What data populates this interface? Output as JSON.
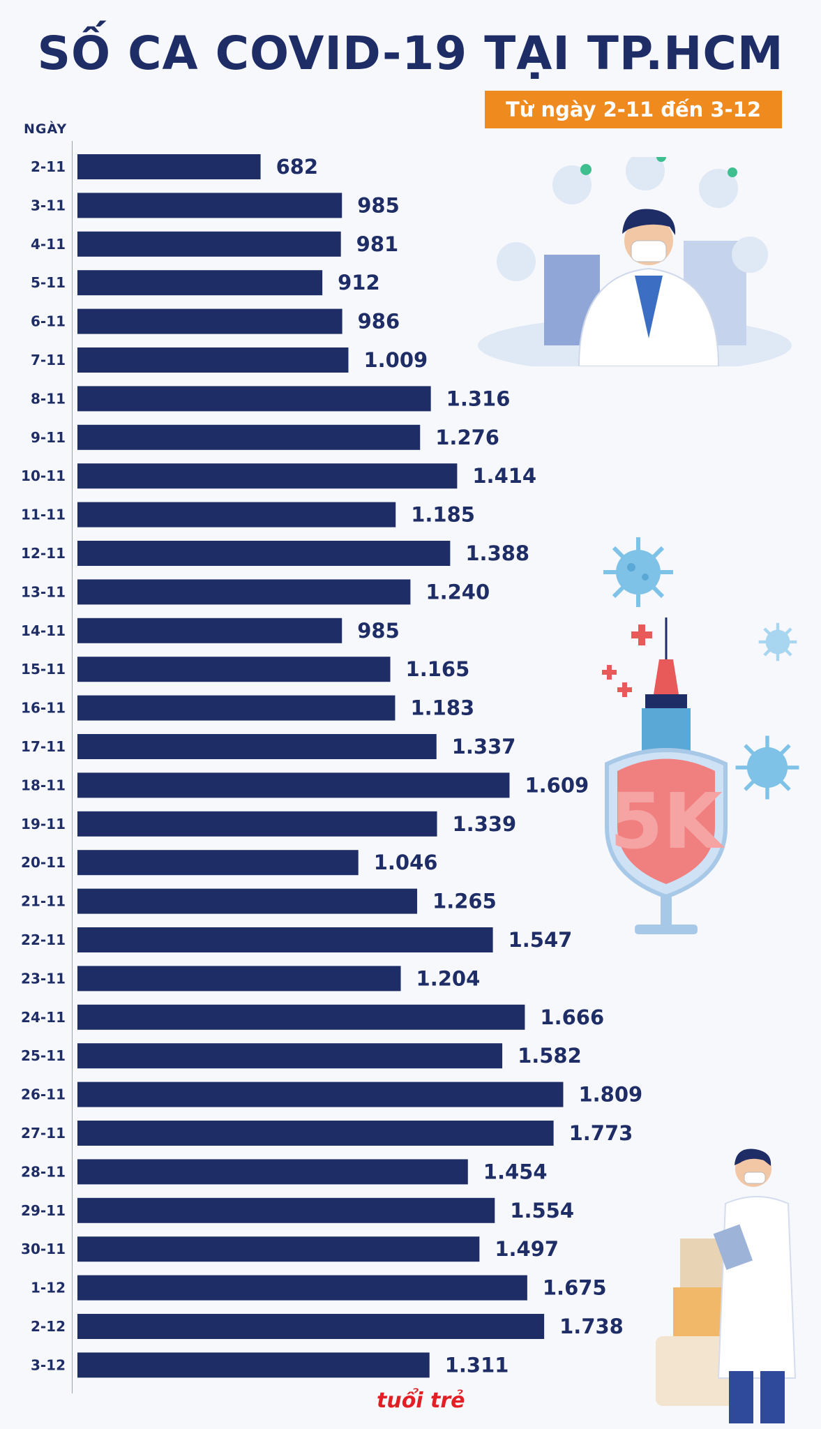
{
  "title": "SỐ CA COVID-19 TẠI TP.HCM",
  "subtitle": "Từ ngày 2-11 đến 3-12",
  "logo_text": "tuổi trẻ",
  "chart_data": {
    "type": "bar",
    "orientation": "horizontal",
    "ylabel": "NGÀY",
    "categories": [
      "2-11",
      "3-11",
      "4-11",
      "5-11",
      "6-11",
      "7-11",
      "8-11",
      "9-11",
      "10-11",
      "11-11",
      "12-11",
      "13-11",
      "14-11",
      "15-11",
      "16-11",
      "17-11",
      "18-11",
      "19-11",
      "20-11",
      "21-11",
      "22-11",
      "23-11",
      "24-11",
      "25-11",
      "26-11",
      "27-11",
      "28-11",
      "29-11",
      "30-11",
      "1-12",
      "2-12",
      "3-12"
    ],
    "values": [
      682,
      985,
      981,
      912,
      986,
      1009,
      1316,
      1276,
      1414,
      1185,
      1388,
      1240,
      985,
      1165,
      1183,
      1337,
      1609,
      1339,
      1046,
      1265,
      1547,
      1204,
      1666,
      1582,
      1809,
      1773,
      1454,
      1554,
      1497,
      1675,
      1738,
      1311
    ],
    "value_labels": [
      "682",
      "985",
      "981",
      "912",
      "986",
      "1.009",
      "1.316",
      "1.276",
      "1.414",
      "1.185",
      "1.388",
      "1.240",
      "985",
      "1.165",
      "1.183",
      "1.337",
      "1.609",
      "1.339",
      "1.046",
      "1.265",
      "1.547",
      "1.204",
      "1.666",
      "1.582",
      "1.809",
      "1.773",
      "1.454",
      "1.554",
      "1.497",
      "1.675",
      "1.738",
      "1.311"
    ],
    "bar_color": "#1f2d66"
  }
}
